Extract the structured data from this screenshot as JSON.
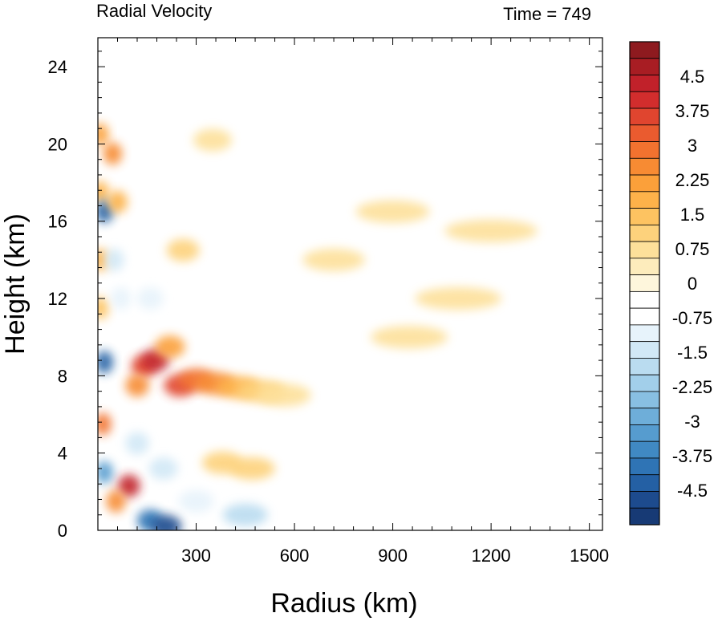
{
  "chart_data": {
    "type": "heatmap",
    "title_left": "Radial Velocity",
    "title_right": "Time = 749",
    "xlabel": "Radius (km)",
    "ylabel": "Height (km)",
    "xlim": [
      0,
      1540
    ],
    "ylim": [
      0,
      25.5
    ],
    "xticks": [
      300,
      600,
      900,
      1200,
      1500
    ],
    "xtick_labels": [
      "300",
      "600",
      "900",
      "1200",
      "1500"
    ],
    "yticks": [
      0,
      4,
      8,
      12,
      16,
      20,
      24
    ],
    "ytick_labels": [
      "0",
      "4",
      "8",
      "12",
      "16",
      "20",
      "24"
    ],
    "colorbar": {
      "levels": [
        -5.25,
        5.25
      ],
      "step": 0.375,
      "tick_labels": [
        "4.5",
        "3.75",
        "3",
        "2.25",
        "1.5",
        "0.75",
        "0",
        "-0.75",
        "-1.5",
        "-2.25",
        "-3",
        "-3.75",
        "-4.5"
      ],
      "tick_values": [
        4.5,
        3.75,
        3,
        2.25,
        1.5,
        0.75,
        0,
        -0.75,
        -1.5,
        -2.25,
        -3,
        -3.75,
        -4.5
      ],
      "colors_top_to_bottom": [
        "#8e1a1f",
        "#a81d23",
        "#c1212a",
        "#d22d2d",
        "#e0452f",
        "#ea5b2f",
        "#f2722f",
        "#f78b33",
        "#fba03a",
        "#fdb24a",
        "#fdc361",
        "#fdd27c",
        "#fde09a",
        "#fdecbc",
        "#fef6dc",
        "#ffffff",
        "#ffffff",
        "#e7f3fb",
        "#d1e8f6",
        "#badcf0",
        "#a2cfea",
        "#88bfe2",
        "#6eaed9",
        "#569ccf",
        "#4089c3",
        "#2f74b5",
        "#2460a4",
        "#1d4b8e",
        "#173a75"
      ]
    },
    "features": [
      {
        "r": 8,
        "z": 20.5,
        "v": 2.2
      },
      {
        "r": 8,
        "z": 17.5,
        "v": 1.8
      },
      {
        "r": 8,
        "z": 14,
        "v": 1.9
      },
      {
        "r": 8,
        "z": 11.5,
        "v": 1.4
      },
      {
        "r": 20,
        "z": 16.5,
        "v": -4.2
      },
      {
        "r": 20,
        "z": 8.7,
        "v": -4.4
      },
      {
        "r": 20,
        "z": 3,
        "v": -3.2
      },
      {
        "r": 15,
        "z": 5.5,
        "v": 2.8
      },
      {
        "r": 45,
        "z": 19.5,
        "v": 2.5
      },
      {
        "r": 60,
        "z": 17,
        "v": 1.8
      },
      {
        "r": 50,
        "z": 14,
        "v": -1.4
      },
      {
        "r": 70,
        "z": 12,
        "v": -1.2
      },
      {
        "r": 95,
        "z": 2.3,
        "v": 4.4
      },
      {
        "r": 55,
        "z": 1.5,
        "v": 2.5
      },
      {
        "r": 160,
        "z": 0.5,
        "v": -4.0
      },
      {
        "r": 210,
        "z": 0.2,
        "v": -4.6
      },
      {
        "r": 140,
        "z": 8.5,
        "v": 3.8
      },
      {
        "r": 175,
        "z": 8.8,
        "v": 4.2
      },
      {
        "r": 120,
        "z": 7.5,
        "v": 2.5
      },
      {
        "r": 250,
        "z": 7.5,
        "v": 3.5
      },
      {
        "r": 300,
        "z": 7.8,
        "v": 2.9
      },
      {
        "r": 360,
        "z": 7.6,
        "v": 2.4
      },
      {
        "r": 430,
        "z": 7.4,
        "v": 1.7
      },
      {
        "r": 500,
        "z": 7.2,
        "v": 1.2
      },
      {
        "r": 570,
        "z": 7.0,
        "v": 0.8
      },
      {
        "r": 220,
        "z": 9.5,
        "v": 2.2
      },
      {
        "r": 120,
        "z": 4.5,
        "v": -1.5
      },
      {
        "r": 200,
        "z": 3.2,
        "v": -1.6
      },
      {
        "r": 300,
        "z": 1.5,
        "v": -1.0
      },
      {
        "r": 450,
        "z": 0.8,
        "v": -1.8
      },
      {
        "r": 380,
        "z": 3.5,
        "v": 1.0
      },
      {
        "r": 470,
        "z": 3.2,
        "v": 1.1
      },
      {
        "r": 160,
        "z": 12,
        "v": -1.1
      },
      {
        "r": 260,
        "z": 14.5,
        "v": 1.0
      },
      {
        "r": 200,
        "z": 18,
        "v": -0.9
      },
      {
        "r": 350,
        "z": 20.2,
        "v": 0.9
      },
      {
        "r": 500,
        "z": 19.5,
        "v": -0.9
      },
      {
        "r": 900,
        "z": 20.2,
        "v": -0.8
      },
      {
        "r": 800,
        "z": 18.5,
        "v": -0.7
      },
      {
        "r": 720,
        "z": 14,
        "v": 0.6
      },
      {
        "r": 900,
        "z": 16.5,
        "v": 0.8
      },
      {
        "r": 1200,
        "z": 15.5,
        "v": 0.7
      },
      {
        "r": 950,
        "z": 10,
        "v": 0.7
      },
      {
        "r": 1100,
        "z": 12,
        "v": 0.6
      },
      {
        "r": 850,
        "z": 3.5,
        "v": -0.8
      },
      {
        "r": 540,
        "z": 12,
        "v": -0.6
      }
    ]
  }
}
